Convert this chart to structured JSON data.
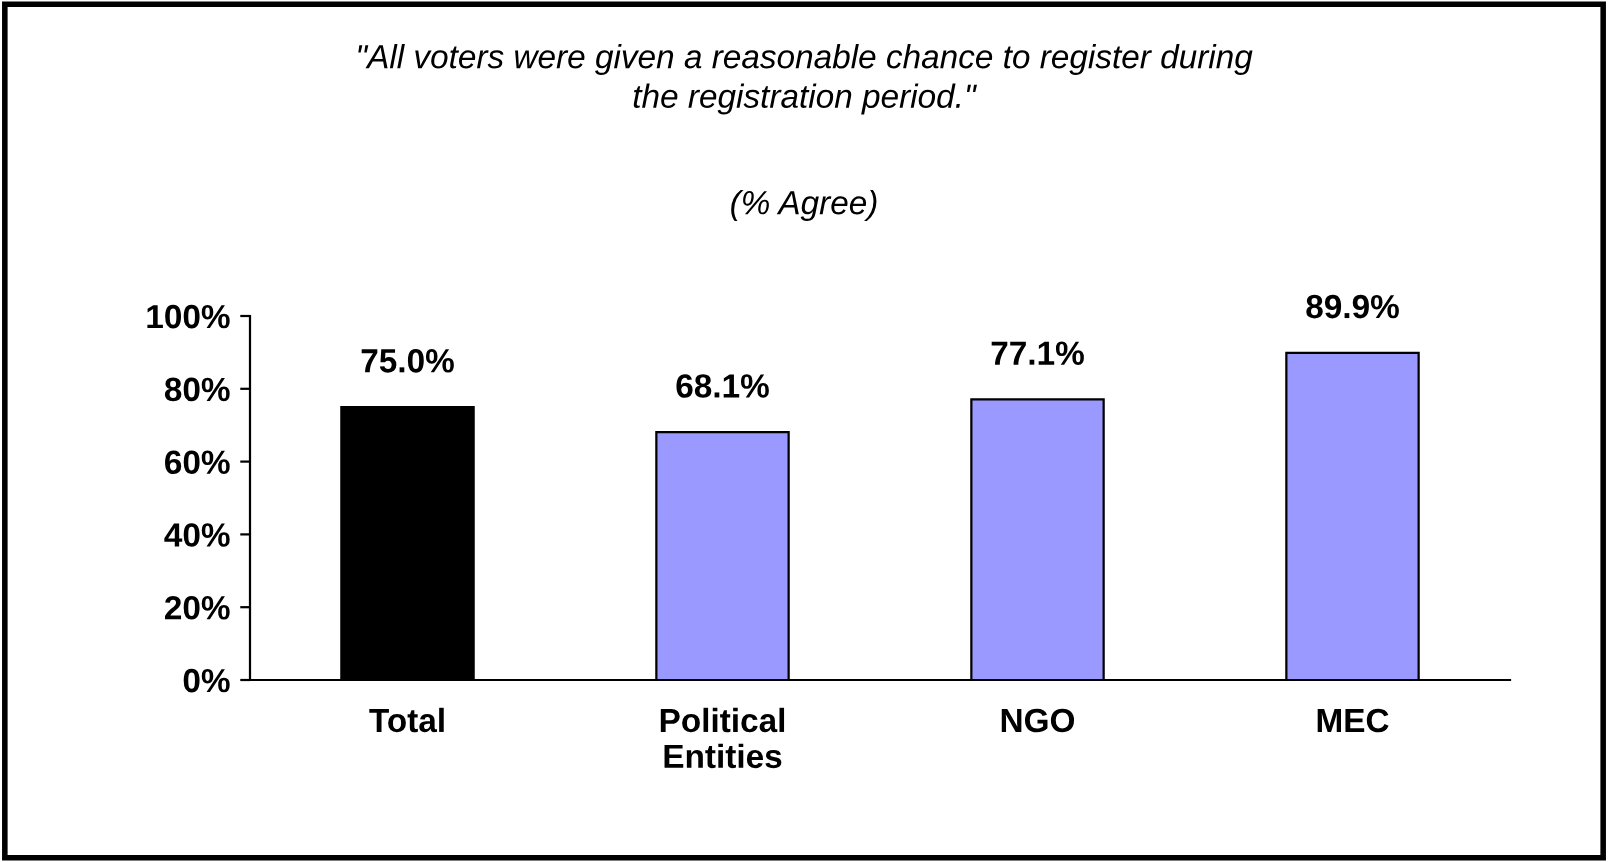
{
  "chart_data": {
    "type": "bar",
    "title": "\"All voters were given a reasonable chance to register during\nthe registration period.\"",
    "subtitle": "(% Agree)",
    "categories": [
      "Total",
      "Political\nEntities",
      "NGO",
      "MEC"
    ],
    "values": [
      75.0,
      68.1,
      77.1,
      89.9
    ],
    "colors": [
      "#000000",
      "#9999ff",
      "#9999ff",
      "#9999ff"
    ],
    "value_labels": [
      "75.0%",
      "68.1%",
      "77.1%",
      "89.9%"
    ],
    "ylim": [
      0,
      100
    ],
    "yticks": [
      {
        "value": 0,
        "label": "0%"
      },
      {
        "value": 20,
        "label": "20%"
      },
      {
        "value": 40,
        "label": "40%"
      },
      {
        "value": 60,
        "label": "60%"
      },
      {
        "value": 80,
        "label": "80%"
      },
      {
        "value": 100,
        "label": "100%"
      }
    ],
    "grid": false,
    "legend": false
  }
}
